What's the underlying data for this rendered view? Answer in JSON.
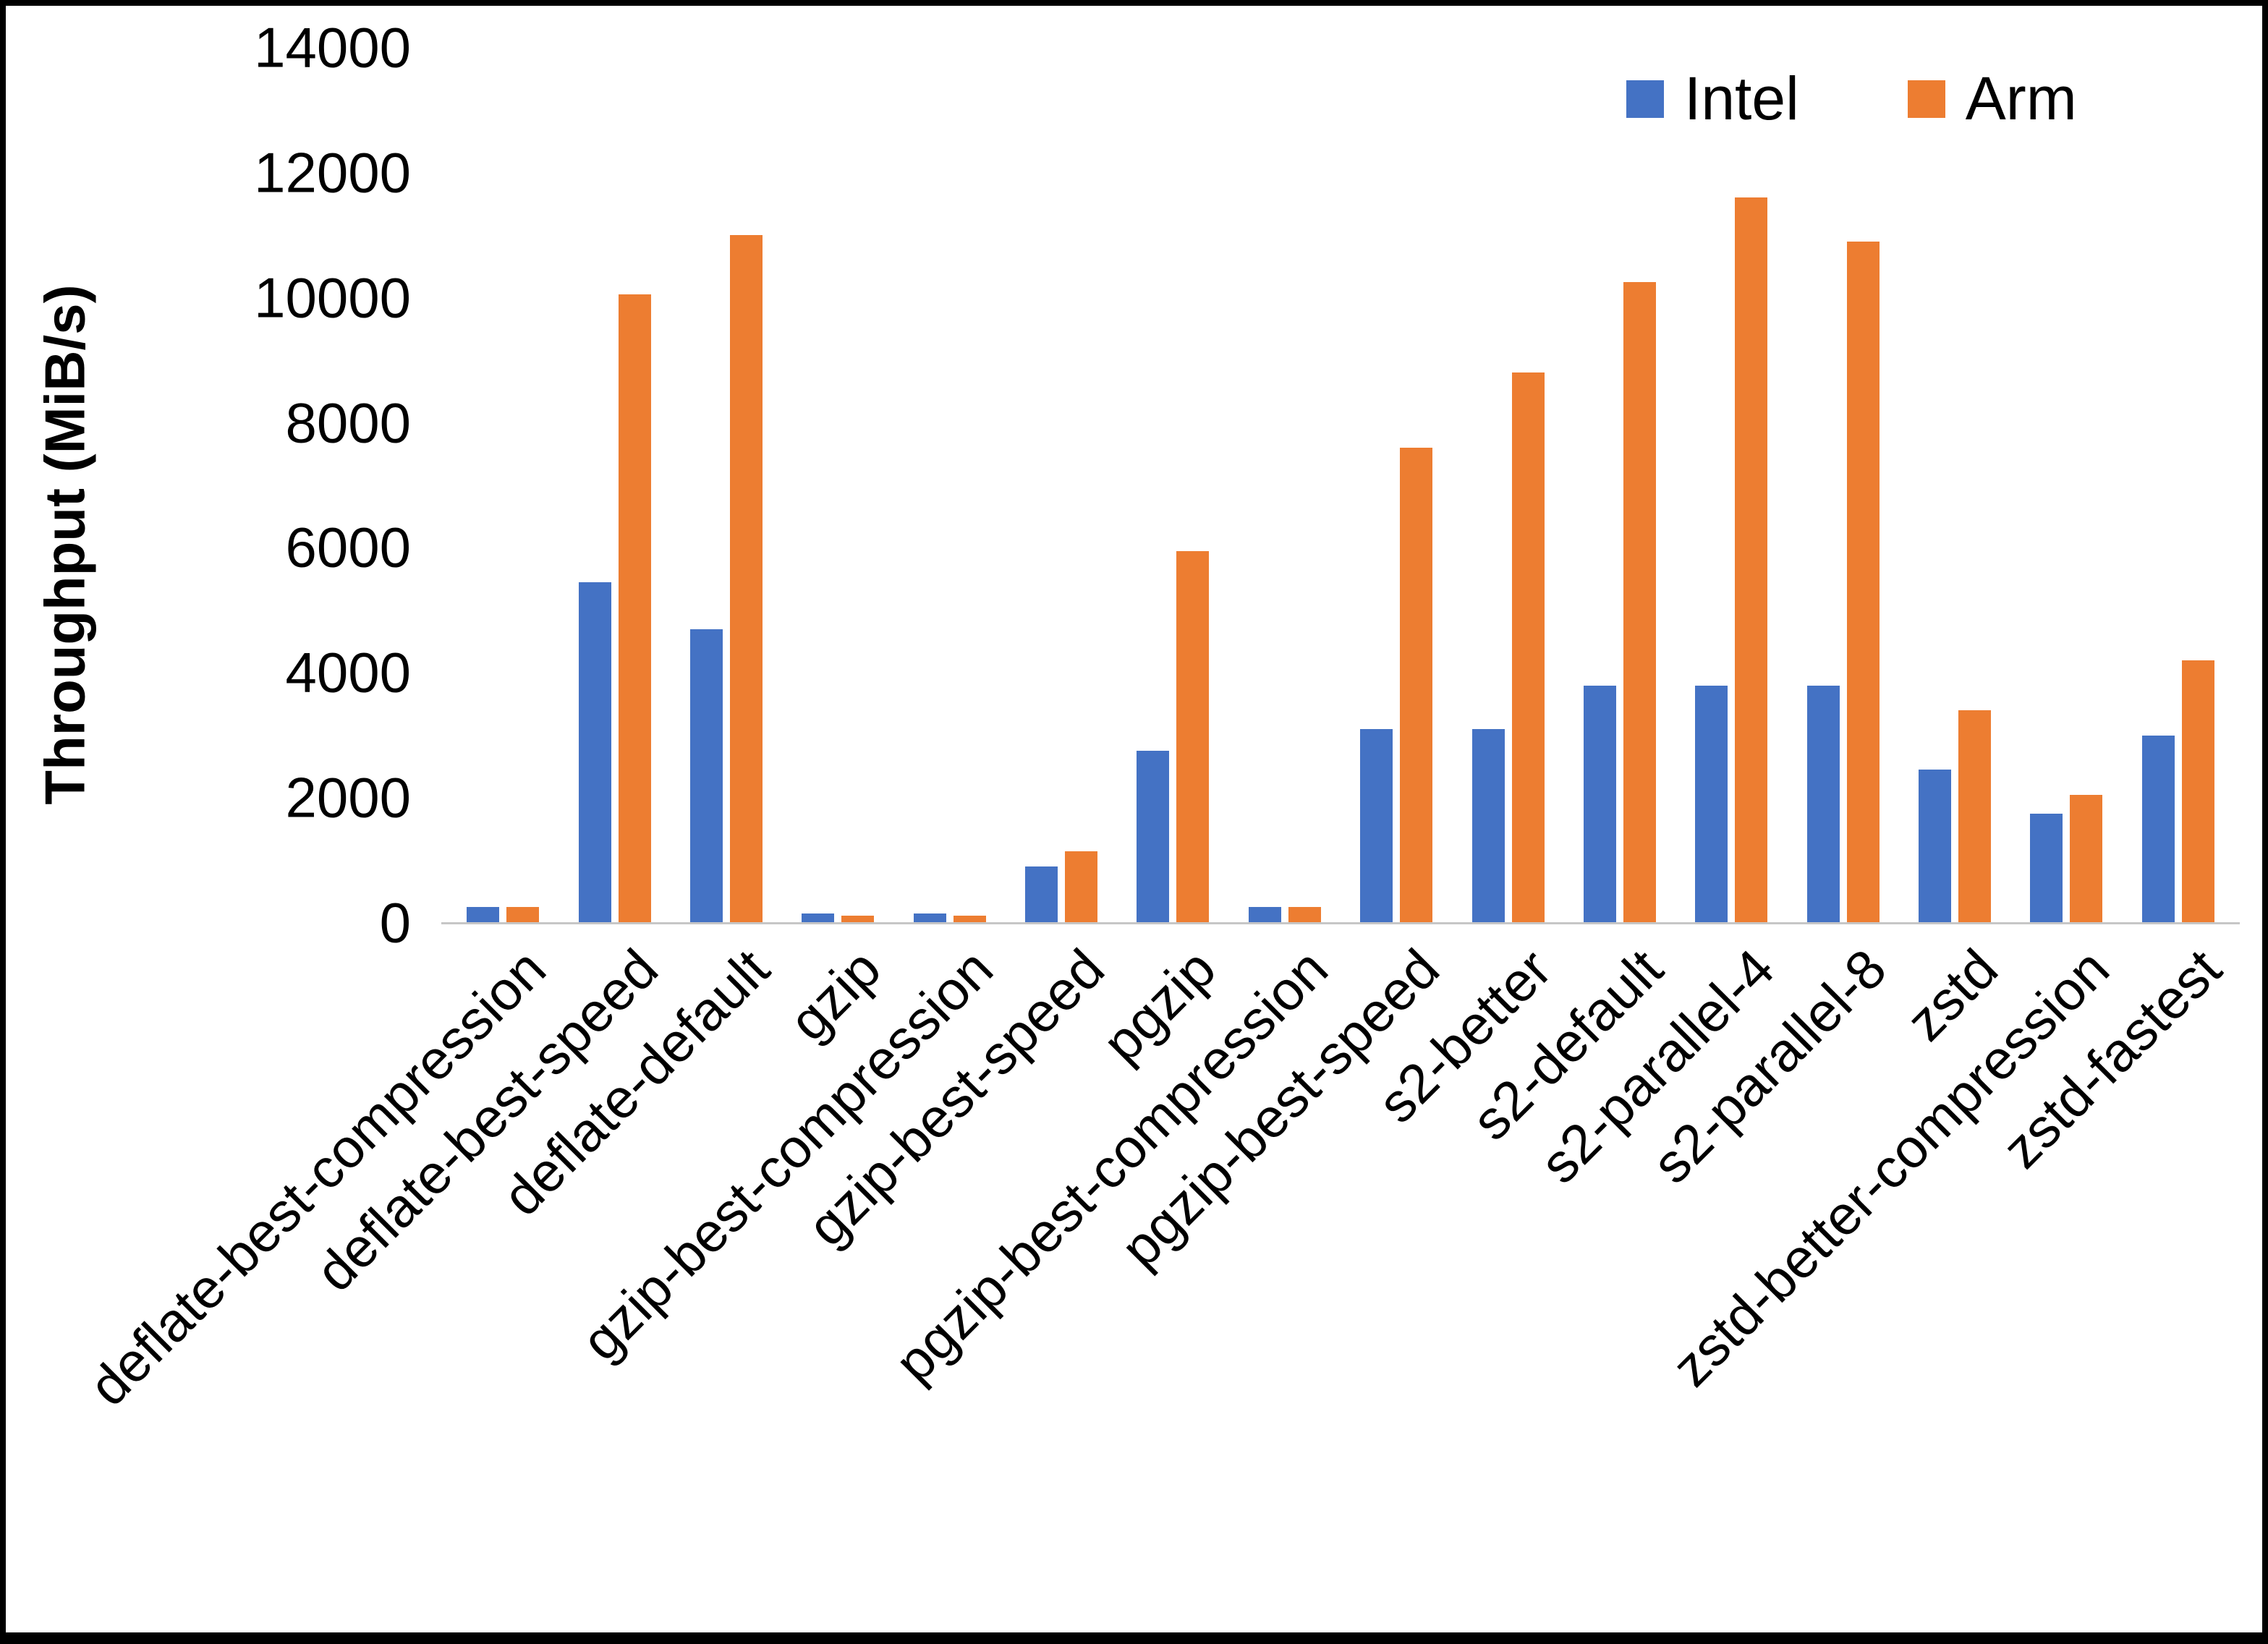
{
  "chart_data": {
    "type": "bar",
    "title": "",
    "xlabel": "",
    "ylabel": "Throughput (MiB/s)",
    "ylim": [
      0,
      14000
    ],
    "yticks": [
      0,
      2000,
      4000,
      6000,
      8000,
      10000,
      12000,
      14000
    ],
    "grid": false,
    "legend_position": "top-right",
    "categories": [
      "deflate-best-compression",
      "deflate-best-speed",
      "deflate-default",
      "gzip",
      "gzip-best-compression",
      "gzip-best-speed",
      "pgzip",
      "pgzip-best-compression",
      "pgzip-best-speed",
      "s2-better",
      "s2-default",
      "s2-parallel-4",
      "s2-parallel-8",
      "zstd",
      "zstd-better-compression",
      "zstd-fastest"
    ],
    "series": [
      {
        "name": "Intel",
        "color": "#4472C4",
        "values": [
          250,
          5450,
          4700,
          150,
          150,
          900,
          2750,
          250,
          3100,
          3100,
          3800,
          3800,
          3800,
          2450,
          1750,
          3000
        ]
      },
      {
        "name": "Arm",
        "color": "#ED7D31",
        "values": [
          250,
          10050,
          11000,
          120,
          120,
          1150,
          5950,
          250,
          7600,
          8800,
          10250,
          11600,
          10900,
          3400,
          2050,
          4200
        ]
      }
    ]
  }
}
